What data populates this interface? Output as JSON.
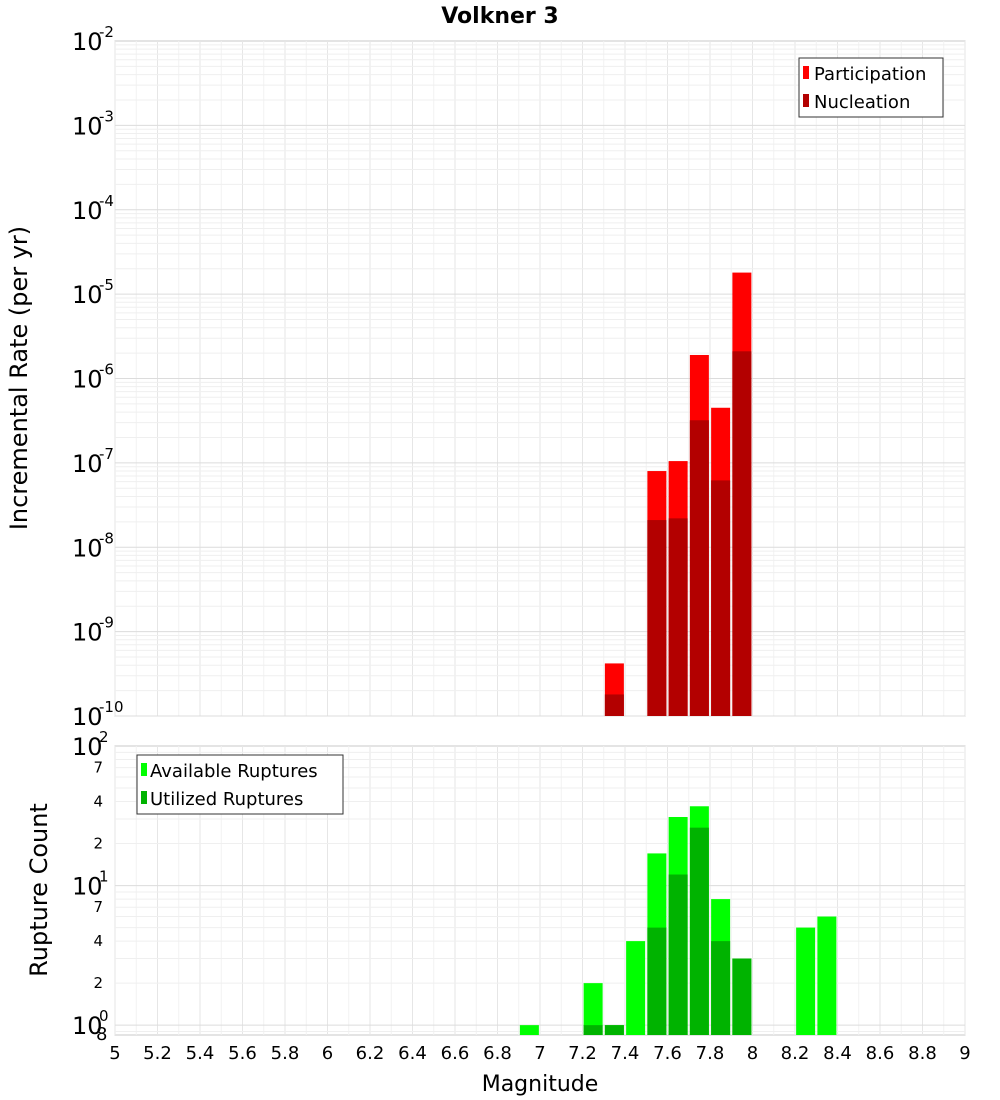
{
  "chart_data": [
    {
      "type": "bar",
      "title": "Volkner 3",
      "xlabel": "Magnitude",
      "ylabel": "Incremental Rate (per yr)",
      "yscale": "log",
      "ylim": [
        1e-10,
        0.01
      ],
      "xlim": [
        5,
        9
      ],
      "legend_position": "top-right",
      "grid": true,
      "y_tick_labels": [
        {
          "value": 1e-10,
          "base": "10",
          "exp": "-10"
        },
        {
          "value": 1e-09,
          "base": "10",
          "exp": "-9"
        },
        {
          "value": 1e-08,
          "base": "10",
          "exp": "-8"
        },
        {
          "value": 1e-07,
          "base": "10",
          "exp": "-7"
        },
        {
          "value": 1e-06,
          "base": "10",
          "exp": "-6"
        },
        {
          "value": 1e-05,
          "base": "10",
          "exp": "-5"
        },
        {
          "value": 0.0001,
          "base": "10",
          "exp": "-4"
        },
        {
          "value": 0.001,
          "base": "10",
          "exp": "-3"
        },
        {
          "value": 0.01,
          "base": "10",
          "exp": "-2"
        }
      ],
      "series": [
        {
          "name": "Participation",
          "color": "#ff0000",
          "x": [
            7.35,
            7.55,
            7.65,
            7.75,
            7.85,
            7.95
          ],
          "values": [
            4.2e-10,
            8e-08,
            1.05e-07,
            1.9e-06,
            4.5e-07,
            1.8e-05
          ]
        },
        {
          "name": "Nucleation",
          "color": "#b30000",
          "x": [
            7.35,
            7.55,
            7.65,
            7.75,
            7.85,
            7.95
          ],
          "values": [
            1.8e-10,
            2.1e-08,
            2.2e-08,
            3.2e-07,
            6.2e-08,
            2.1e-06
          ]
        }
      ]
    },
    {
      "type": "bar",
      "title": "",
      "xlabel": "Magnitude",
      "ylabel": "Rupture Count",
      "yscale": "log",
      "ylim": [
        0.85,
        100
      ],
      "xlim": [
        5,
        9
      ],
      "legend_position": "top-left",
      "grid": true,
      "x_ticks": [
        5,
        5.2,
        5.4,
        5.6,
        5.8,
        6,
        6.2,
        6.4,
        6.6,
        6.8,
        7,
        7.2,
        7.4,
        7.6,
        7.8,
        8,
        8.2,
        8.4,
        8.6,
        8.8,
        9
      ],
      "y_tick_labels": [
        {
          "value": 1,
          "base": "10",
          "exp": "0"
        },
        {
          "value": 10,
          "base": "10",
          "exp": "1"
        },
        {
          "value": 100,
          "base": "10",
          "exp": "2"
        }
      ],
      "y_minor_labels": [
        {
          "value": 2,
          "label": "2"
        },
        {
          "value": 4,
          "label": "4"
        },
        {
          "value": 7,
          "label": "7"
        },
        {
          "value": 20,
          "label": "2"
        },
        {
          "value": 40,
          "label": "4"
        },
        {
          "value": 70,
          "label": "7"
        }
      ],
      "y_bottom_label": "8",
      "series": [
        {
          "name": "Available Ruptures",
          "color": "#00ff00",
          "x": [
            6.95,
            7.25,
            7.35,
            7.45,
            7.55,
            7.65,
            7.75,
            7.85,
            7.95,
            8.25,
            8.35
          ],
          "values": [
            1,
            2,
            1,
            4,
            17,
            31,
            37,
            8,
            3,
            5,
            6
          ]
        },
        {
          "name": "Utilized Ruptures",
          "color": "#00b300",
          "x": [
            7.25,
            7.35,
            7.55,
            7.65,
            7.75,
            7.85,
            7.95
          ],
          "values": [
            1,
            1,
            5,
            12,
            26,
            4,
            3
          ]
        }
      ]
    }
  ]
}
